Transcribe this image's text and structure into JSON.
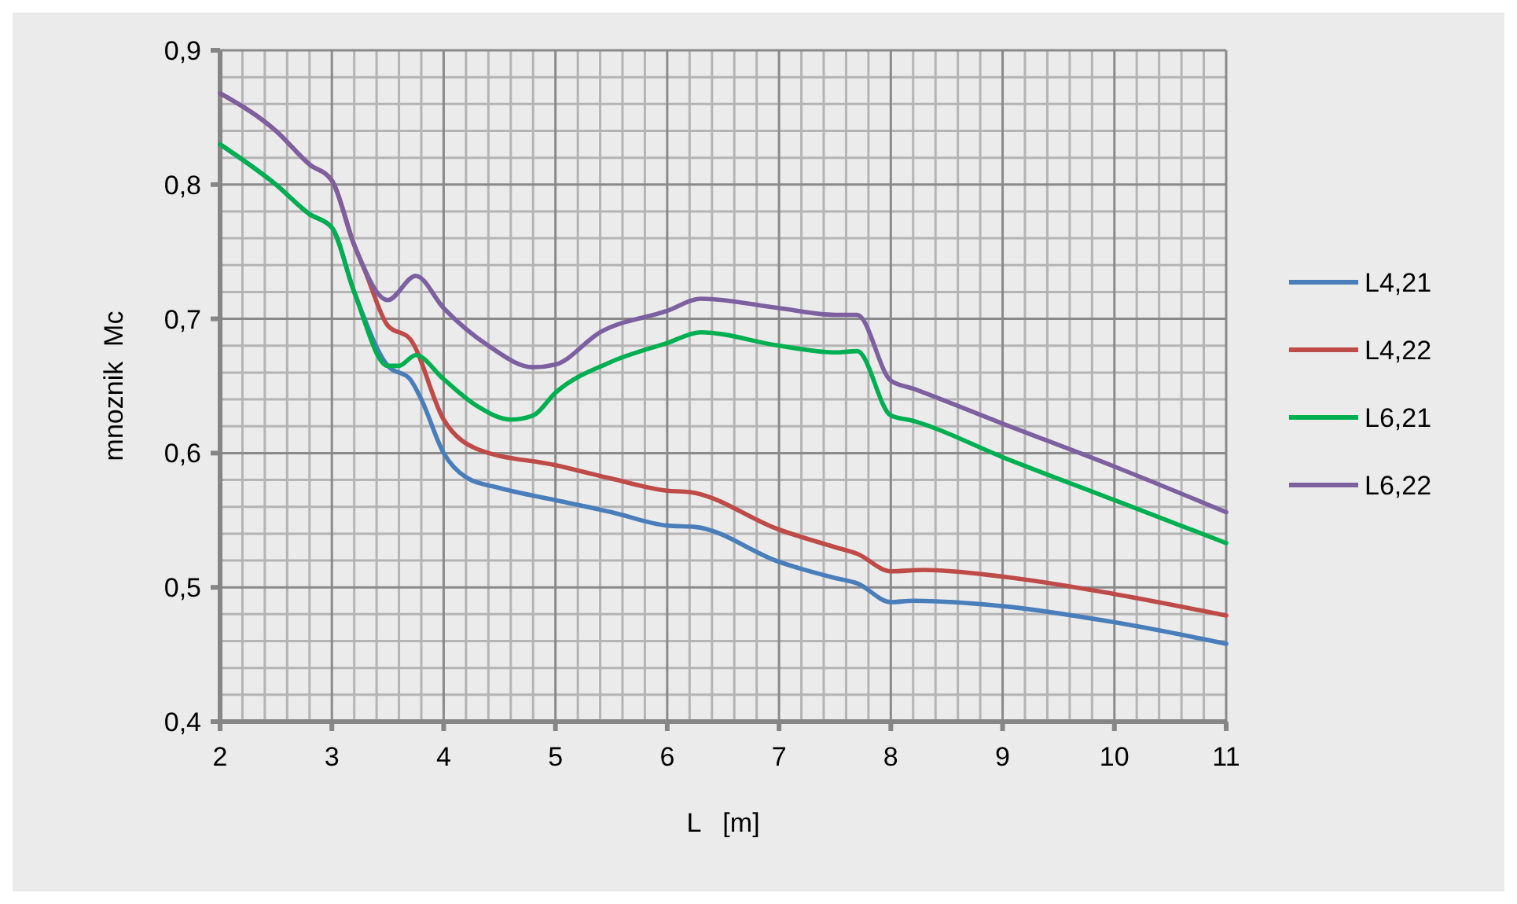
{
  "chart_data": {
    "type": "line",
    "xlabel": "L   [m]",
    "ylabel": "mnoznik  Mc",
    "xlim": [
      2,
      11
    ],
    "ylim": [
      0.4,
      0.9
    ],
    "xticks": [
      2,
      3,
      4,
      5,
      6,
      7,
      8,
      9,
      10,
      11
    ],
    "yticks": [
      {
        "value": 0.4,
        "label": "0,4"
      },
      {
        "value": 0.5,
        "label": "0,5"
      },
      {
        "value": 0.6,
        "label": "0,6"
      },
      {
        "value": 0.7,
        "label": "0,7"
      },
      {
        "value": 0.8,
        "label": "0,8"
      },
      {
        "value": 0.9,
        "label": "0,9"
      }
    ],
    "grid": true,
    "legend": "right",
    "marker": "none",
    "line_style": "solid",
    "series": [
      {
        "name": "L4,21",
        "color": "#4a7ebb",
        "x": [
          2,
          2.5,
          2.8,
          3,
          3.2,
          3.5,
          3.7,
          3.8,
          4,
          4.2,
          4.5,
          5,
          5.5,
          6,
          6.25,
          7,
          7.5,
          7.7,
          8,
          8.2,
          9,
          10,
          11
        ],
        "values": [
          0.83,
          0.8,
          0.778,
          0.768,
          0.72,
          0.665,
          0.655,
          0.64,
          0.6,
          0.582,
          0.574,
          0.565,
          0.556,
          0.546,
          0.545,
          0.519,
          0.507,
          0.503,
          0.489,
          0.49,
          0.486,
          0.474,
          0.458
        ]
      },
      {
        "name": "L4,22",
        "color": "#be4b48",
        "x": [
          2,
          2.5,
          2.8,
          3,
          3.2,
          3.3,
          3.5,
          3.7,
          4,
          4.3,
          5,
          5.5,
          6,
          6.2,
          7,
          7.5,
          7.7,
          8,
          8.3,
          9,
          10,
          11
        ],
        "values": [
          0.868,
          0.84,
          0.815,
          0.803,
          0.755,
          0.735,
          0.695,
          0.685,
          0.625,
          0.603,
          0.591,
          0.581,
          0.572,
          0.571,
          0.543,
          0.53,
          0.525,
          0.512,
          0.513,
          0.508,
          0.495,
          0.479
        ]
      },
      {
        "name": "L6,21",
        "color": "#00b050",
        "x": [
          2,
          2.5,
          2.8,
          3,
          3.2,
          3.5,
          3.6,
          3.75,
          4,
          4.3,
          4.6,
          4.8,
          5,
          5.5,
          6,
          6.3,
          7,
          7.5,
          7.7,
          8,
          8.2,
          9,
          10,
          11
        ],
        "values": [
          0.83,
          0.8,
          0.778,
          0.768,
          0.72,
          0.665,
          0.665,
          0.673,
          0.655,
          0.635,
          0.625,
          0.628,
          0.645,
          0.668,
          0.682,
          0.69,
          0.68,
          0.675,
          0.676,
          0.628,
          0.624,
          0.597,
          0.565,
          0.533
        ]
      },
      {
        "name": "L6,22",
        "color": "#7d60a0",
        "x": [
          2,
          2.5,
          2.8,
          3,
          3.2,
          3.5,
          3.75,
          4,
          4.4,
          4.8,
          5,
          5.4,
          6,
          6.3,
          7,
          7.5,
          7.7,
          8,
          8.2,
          9,
          10,
          11
        ],
        "values": [
          0.868,
          0.84,
          0.815,
          0.803,
          0.755,
          0.714,
          0.732,
          0.708,
          0.68,
          0.664,
          0.666,
          0.69,
          0.706,
          0.715,
          0.708,
          0.703,
          0.703,
          0.654,
          0.648,
          0.622,
          0.59,
          0.556
        ]
      }
    ]
  }
}
